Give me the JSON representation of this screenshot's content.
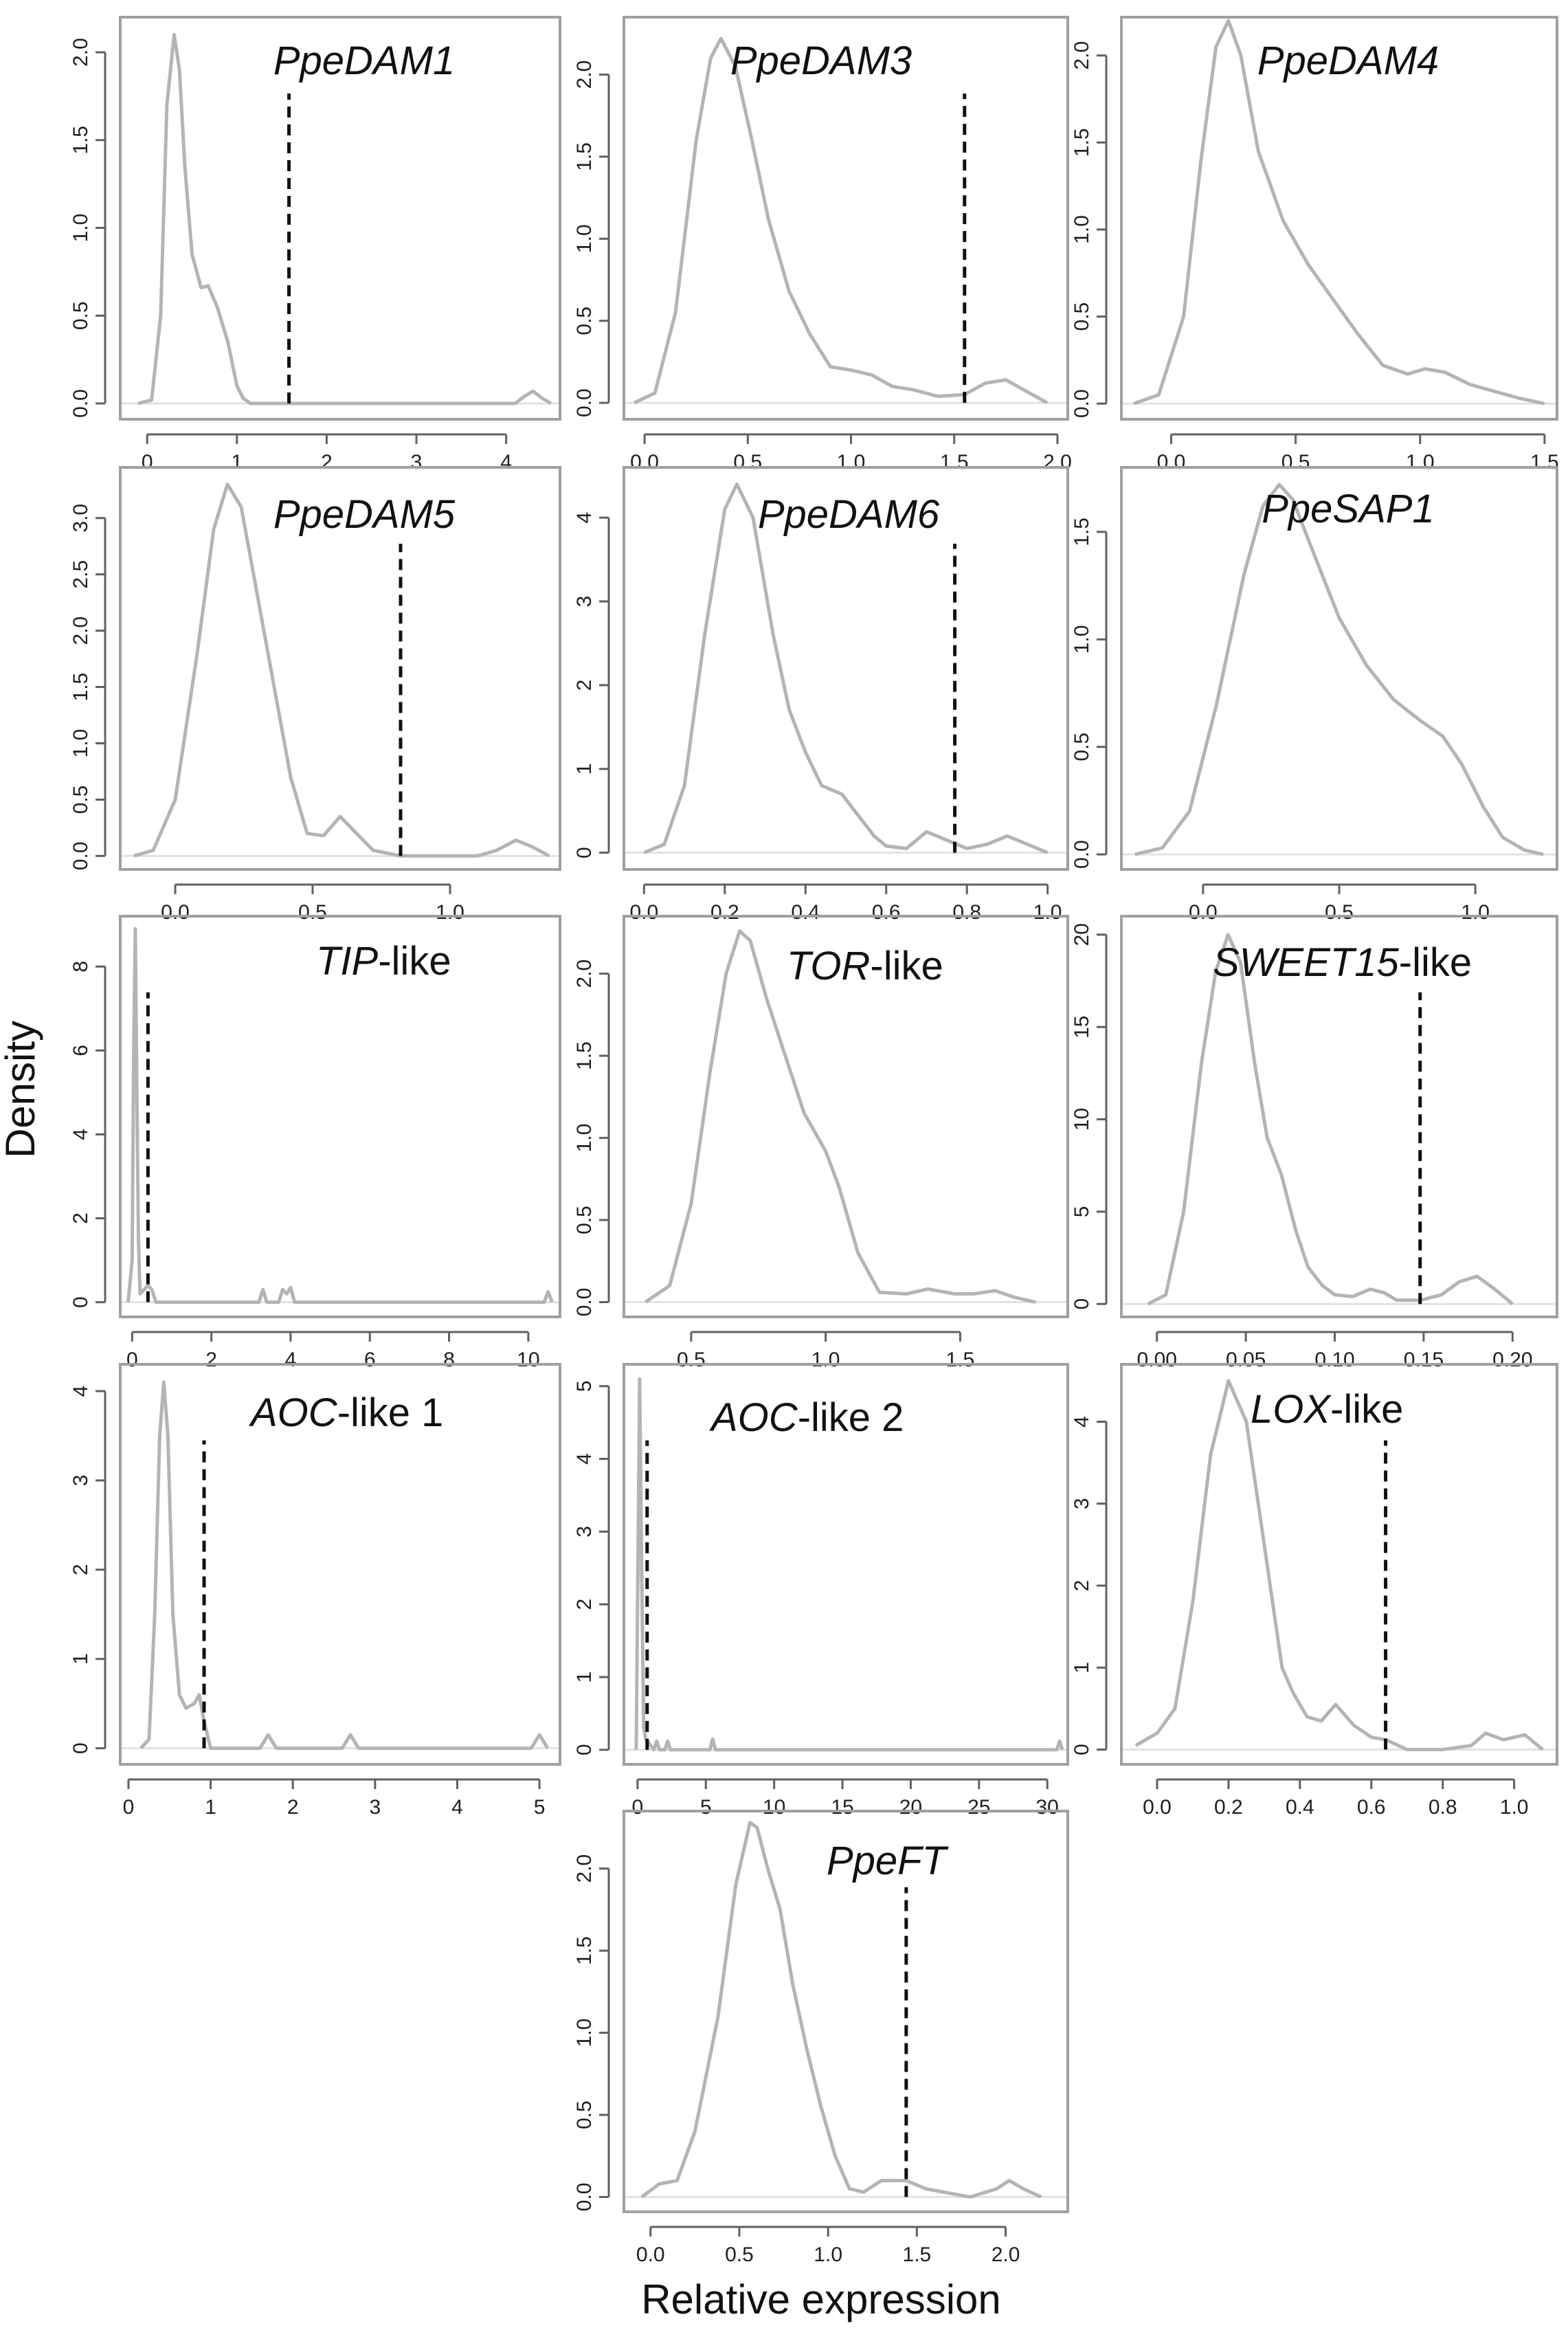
{
  "chart_data": {
    "type": "line",
    "subtype": "density",
    "ylabel": "Density",
    "xlabel": "Relative expression",
    "panels": [
      {
        "name": "PpeDAM1",
        "title_italic": "PpeDAM1",
        "title_suffix": "",
        "threshold": 1.58,
        "xlim": [
          -0.3,
          4.6
        ],
        "ylim": [
          -0.09,
          2.2
        ],
        "xticks": [
          0,
          1,
          2,
          3,
          4
        ],
        "yticks": [
          0,
          0.5,
          1,
          1.5,
          2
        ],
        "yticklabels": [
          "0.0",
          "0.5",
          "1.0",
          "1.5",
          "2.0"
        ],
        "x": [
          -0.1,
          0.05,
          0.15,
          0.22,
          0.3,
          0.36,
          0.42,
          0.5,
          0.6,
          0.68,
          0.78,
          0.9,
          1.0,
          1.07,
          1.15,
          1.3,
          2.0,
          3.0,
          4.1,
          4.2,
          4.3,
          4.4,
          4.5
        ],
        "y": [
          0,
          0.02,
          0.5,
          1.7,
          2.1,
          1.9,
          1.35,
          0.85,
          0.66,
          0.67,
          0.55,
          0.35,
          0.1,
          0.03,
          0,
          0,
          0,
          0,
          0,
          0.04,
          0.07,
          0.03,
          0
        ]
      },
      {
        "name": "PpeDAM3",
        "title_italic": "PpeDAM3",
        "title_suffix": "",
        "threshold": 1.55,
        "xlim": [
          -0.1,
          2.05
        ],
        "ylim": [
          -0.1,
          2.35
        ],
        "xticks": [
          0,
          0.5,
          1,
          1.5,
          2
        ],
        "xticklabels": [
          "0.0",
          "0.5",
          "1.0",
          "1.5",
          "2.0"
        ],
        "yticks": [
          0,
          0.5,
          1,
          1.5,
          2
        ],
        "yticklabels": [
          "0.0",
          "0.5",
          "1.0",
          "1.5",
          "2.0"
        ],
        "x": [
          -0.05,
          0.05,
          0.15,
          0.25,
          0.32,
          0.37,
          0.44,
          0.52,
          0.6,
          0.7,
          0.8,
          0.9,
          1.0,
          1.1,
          1.2,
          1.3,
          1.42,
          1.55,
          1.65,
          1.75,
          1.85,
          1.95
        ],
        "y": [
          0,
          0.06,
          0.55,
          1.6,
          2.1,
          2.22,
          2.05,
          1.6,
          1.12,
          0.68,
          0.42,
          0.22,
          0.2,
          0.17,
          0.1,
          0.08,
          0.04,
          0.05,
          0.12,
          0.14,
          0.07,
          0
        ]
      },
      {
        "name": "PpeDAM4",
        "title_italic": "PpeDAM4",
        "title_suffix": "",
        "threshold": null,
        "xlim": [
          -0.2,
          1.55
        ],
        "ylim": [
          -0.09,
          2.22
        ],
        "xticks": [
          0,
          0.5,
          1,
          1.5
        ],
        "xticklabels": [
          "0.0",
          "0.5",
          "1.0",
          "1.5"
        ],
        "yticks": [
          0,
          0.5,
          1,
          1.5,
          2
        ],
        "yticklabels": [
          "0.0",
          "0.5",
          "1.0",
          "1.5",
          "2.0"
        ],
        "x": [
          -0.15,
          -0.05,
          0.05,
          0.12,
          0.18,
          0.23,
          0.28,
          0.35,
          0.45,
          0.55,
          0.65,
          0.75,
          0.85,
          0.95,
          1.02,
          1.1,
          1.2,
          1.3,
          1.4,
          1.5
        ],
        "y": [
          0,
          0.05,
          0.5,
          1.4,
          2.05,
          2.2,
          2.0,
          1.45,
          1.05,
          0.8,
          0.6,
          0.4,
          0.22,
          0.17,
          0.2,
          0.18,
          0.11,
          0.07,
          0.03,
          0
        ]
      },
      {
        "name": "PpeDAM5",
        "title_italic": "PpeDAM5",
        "title_suffix": "",
        "threshold": 0.82,
        "xlim": [
          -0.2,
          1.4
        ],
        "ylim": [
          -0.12,
          3.45
        ],
        "xticks": [
          0,
          0.5,
          1
        ],
        "xticklabels": [
          "0.0",
          "0.5",
          "1.0"
        ],
        "yticks": [
          0,
          0.5,
          1,
          1.5,
          2,
          2.5,
          3
        ],
        "yticklabels": [
          "0.0",
          "0.5",
          "1.0",
          "1.5",
          "2.0",
          "2.5",
          "3.0"
        ],
        "x": [
          -0.15,
          -0.08,
          0,
          0.08,
          0.14,
          0.19,
          0.24,
          0.3,
          0.36,
          0.42,
          0.48,
          0.54,
          0.6,
          0.66,
          0.72,
          0.82,
          1.0,
          1.1,
          1.17,
          1.24,
          1.3,
          1.36
        ],
        "y": [
          0,
          0.05,
          0.5,
          1.8,
          2.9,
          3.3,
          3.1,
          2.3,
          1.5,
          0.7,
          0.2,
          0.18,
          0.35,
          0.2,
          0.05,
          0,
          0,
          0,
          0.05,
          0.14,
          0.08,
          0
        ]
      },
      {
        "name": "PpeDAM6",
        "title_italic": "PpeDAM6",
        "title_suffix": "",
        "threshold": 0.77,
        "xlim": [
          -0.05,
          1.05
        ],
        "ylim": [
          -0.2,
          4.6
        ],
        "xticks": [
          0,
          0.2,
          0.4,
          0.6,
          0.8,
          1
        ],
        "xticklabels": [
          "0.0",
          "0.2",
          "0.4",
          "0.6",
          "0.8",
          "1.0"
        ],
        "yticks": [
          0,
          1,
          2,
          3,
          4
        ],
        "yticklabels": [
          "0",
          "1",
          "2",
          "3",
          "4"
        ],
        "x": [
          0,
          0.05,
          0.1,
          0.15,
          0.2,
          0.23,
          0.27,
          0.32,
          0.36,
          0.4,
          0.44,
          0.49,
          0.53,
          0.57,
          0.6,
          0.65,
          0.7,
          0.75,
          0.8,
          0.85,
          0.9,
          0.95,
          1.0
        ],
        "y": [
          0,
          0.1,
          0.8,
          2.6,
          4.1,
          4.4,
          4.0,
          2.6,
          1.7,
          1.2,
          0.8,
          0.7,
          0.45,
          0.2,
          0.08,
          0.05,
          0.25,
          0.15,
          0.05,
          0.1,
          0.2,
          0.1,
          0
        ]
      },
      {
        "name": "PpeSAP1",
        "title_italic": "PpeSAP1",
        "title_suffix": "",
        "threshold": null,
        "xlim": [
          -0.3,
          1.3
        ],
        "ylim": [
          -0.07,
          1.8
        ],
        "xticks": [
          0,
          0.5,
          1
        ],
        "xticklabels": [
          "0.0",
          "0.5",
          "1.0"
        ],
        "yticks": [
          0,
          0.5,
          1,
          1.5
        ],
        "yticklabels": [
          "0.0",
          "0.5",
          "1.0",
          "1.5"
        ],
        "x": [
          -0.25,
          -0.15,
          -0.05,
          0.05,
          0.15,
          0.22,
          0.28,
          0.33,
          0.4,
          0.5,
          0.6,
          0.7,
          0.8,
          0.88,
          0.95,
          1.03,
          1.1,
          1.18,
          1.25
        ],
        "y": [
          0,
          0.03,
          0.2,
          0.7,
          1.3,
          1.62,
          1.72,
          1.65,
          1.42,
          1.1,
          0.88,
          0.72,
          0.62,
          0.55,
          0.42,
          0.22,
          0.08,
          0.02,
          0
        ]
      },
      {
        "name": "TIP-like",
        "title_italic": "TIP",
        "title_suffix": "-like",
        "threshold": 0.4,
        "xlim": [
          -0.3,
          10.8
        ],
        "ylim": [
          -0.35,
          9.2
        ],
        "xticks": [
          0,
          2,
          4,
          6,
          8,
          10
        ],
        "xticklabels": [
          "0",
          "2",
          "4",
          "6",
          "8",
          "10"
        ],
        "yticks": [
          0,
          2,
          4,
          6,
          8
        ],
        "yticklabels": [
          "0",
          "2",
          "4",
          "6",
          "8"
        ],
        "x": [
          -0.1,
          0,
          0.04,
          0.08,
          0.12,
          0.16,
          0.2,
          0.3,
          0.4,
          0.5,
          0.6,
          0.8,
          3.2,
          3.3,
          3.4,
          3.7,
          3.8,
          3.9,
          4.0,
          4.1,
          10.4,
          10.5,
          10.6
        ],
        "y": [
          0,
          1,
          6,
          8.9,
          5,
          1.5,
          0.2,
          0.3,
          0.4,
          0.3,
          0,
          0,
          0,
          0.3,
          0,
          0,
          0.3,
          0.2,
          0.35,
          0,
          0,
          0.25,
          0
        ]
      },
      {
        "name": "TOR-like",
        "title_italic": "TOR",
        "title_suffix": "-like",
        "threshold": null,
        "xlim": [
          0.25,
          1.9
        ],
        "ylim": [
          -0.09,
          2.35
        ],
        "xticks": [
          0.5,
          1,
          1.5
        ],
        "xticklabels": [
          "0.5",
          "1.0",
          "1.5"
        ],
        "yticks": [
          0,
          0.5,
          1,
          1.5,
          2
        ],
        "yticklabels": [
          "0.0",
          "0.5",
          "1.0",
          "1.5",
          "2.0"
        ],
        "x": [
          0.33,
          0.42,
          0.5,
          0.57,
          0.63,
          0.68,
          0.72,
          0.78,
          0.85,
          0.92,
          1.0,
          1.05,
          1.12,
          1.2,
          1.3,
          1.38,
          1.48,
          1.55,
          1.63,
          1.7,
          1.78
        ],
        "y": [
          0,
          0.1,
          0.6,
          1.4,
          2.0,
          2.26,
          2.2,
          1.85,
          1.5,
          1.15,
          0.92,
          0.7,
          0.3,
          0.06,
          0.05,
          0.08,
          0.05,
          0.05,
          0.07,
          0.03,
          0
        ]
      },
      {
        "name": "SWEET15-like",
        "title_italic": "SWEET15",
        "title_suffix": "-like",
        "threshold": 0.148,
        "xlim": [
          -0.02,
          0.225
        ],
        "ylim": [
          -0.7,
          21
        ],
        "xticks": [
          0,
          0.05,
          0.1,
          0.15,
          0.2
        ],
        "xticklabels": [
          "0.00",
          "0.05",
          "0.10",
          "0.15",
          "0.20"
        ],
        "yticks": [
          0,
          5,
          10,
          15,
          20
        ],
        "yticklabels": [
          "0",
          "5",
          "10",
          "15",
          "20"
        ],
        "x": [
          -0.005,
          0.005,
          0.015,
          0.025,
          0.033,
          0.04,
          0.047,
          0.055,
          0.062,
          0.07,
          0.078,
          0.085,
          0.093,
          0.1,
          0.11,
          0.12,
          0.128,
          0.135,
          0.148,
          0.16,
          0.17,
          0.18,
          0.19,
          0.2
        ],
        "y": [
          0,
          0.5,
          5,
          13,
          18,
          20,
          18.5,
          13,
          9,
          7,
          4,
          2,
          1,
          0.5,
          0.4,
          0.8,
          0.6,
          0.2,
          0.2,
          0.5,
          1.2,
          1.5,
          0.8,
          0
        ]
      },
      {
        "name": "AOC-like 1",
        "title_italic": "AOC",
        "title_suffix": "-like 1",
        "threshold": 0.92,
        "xlim": [
          -0.1,
          5.25
        ],
        "ylim": [
          -0.18,
          4.3
        ],
        "xticks": [
          0,
          1,
          2,
          3,
          4,
          5
        ],
        "xticklabels": [
          "0",
          "1",
          "2",
          "3",
          "4",
          "5"
        ],
        "yticks": [
          0,
          1,
          2,
          3,
          4
        ],
        "yticklabels": [
          "0",
          "1",
          "2",
          "3",
          "4"
        ],
        "x": [
          0.15,
          0.25,
          0.32,
          0.38,
          0.43,
          0.48,
          0.54,
          0.62,
          0.7,
          0.8,
          0.86,
          0.92,
          1.0,
          1.6,
          1.7,
          1.8,
          2.6,
          2.7,
          2.8,
          4.9,
          5.0,
          5.1
        ],
        "y": [
          0,
          0.1,
          1.5,
          3.5,
          4.1,
          3.5,
          1.5,
          0.6,
          0.45,
          0.5,
          0.6,
          0.3,
          0,
          0,
          0.15,
          0,
          0,
          0.15,
          0,
          0,
          0.15,
          0
        ]
      },
      {
        "name": "AOC-like 2",
        "title_italic": "AOC",
        "title_suffix": "-like 2",
        "threshold": 0.7,
        "xlim": [
          -1.0,
          31.5
        ],
        "ylim": [
          -0.2,
          5.3
        ],
        "xticks": [
          0,
          5,
          10,
          15,
          20,
          25,
          30
        ],
        "xticklabels": [
          "0",
          "5",
          "10",
          "15",
          "20",
          "25",
          "30"
        ],
        "yticks": [
          0,
          1,
          2,
          3,
          4,
          5
        ],
        "yticklabels": [
          "0",
          "1",
          "2",
          "3",
          "4",
          "5"
        ],
        "x": [
          -0.1,
          0.05,
          0.15,
          0.3,
          0.45,
          0.6,
          0.8,
          1.2,
          1.4,
          1.6,
          2.0,
          2.2,
          2.4,
          5.3,
          5.5,
          5.7,
          30.7,
          30.9,
          31.1
        ],
        "y": [
          0,
          3,
          5.1,
          2.5,
          0.3,
          0.15,
          0.1,
          0,
          0.12,
          0,
          0,
          0.12,
          0,
          0,
          0.15,
          0,
          0,
          0.12,
          0
        ]
      },
      {
        "name": "LOX-like",
        "title_italic": "LOX",
        "title_suffix": "-like",
        "threshold": 0.64,
        "xlim": [
          -0.1,
          1.12
        ],
        "ylim": [
          -0.18,
          4.7
        ],
        "xticks": [
          0,
          0.2,
          0.4,
          0.6,
          0.8,
          1
        ],
        "xticklabels": [
          "0.0",
          "0.2",
          "0.4",
          "0.6",
          "0.8",
          "1.0"
        ],
        "yticks": [
          0,
          1,
          2,
          3,
          4
        ],
        "yticklabels": [
          "0",
          "1",
          "2",
          "3",
          "4"
        ],
        "x": [
          -0.06,
          0,
          0.05,
          0.1,
          0.15,
          0.2,
          0.25,
          0.3,
          0.35,
          0.38,
          0.42,
          0.46,
          0.5,
          0.55,
          0.6,
          0.64,
          0.7,
          0.8,
          0.88,
          0.92,
          0.97,
          1.03,
          1.08
        ],
        "y": [
          0.05,
          0.2,
          0.5,
          1.8,
          3.6,
          4.5,
          4.0,
          2.5,
          1.0,
          0.7,
          0.4,
          0.35,
          0.55,
          0.3,
          0.15,
          0.12,
          0,
          0,
          0.05,
          0.2,
          0.12,
          0.18,
          0
        ]
      },
      {
        "name": "PpeFT",
        "title_italic": "PpeFT",
        "title_suffix": "",
        "threshold": 1.44,
        "xlim": [
          -0.15,
          2.35
        ],
        "ylim": [
          -0.09,
          2.35
        ],
        "xticks": [
          0,
          0.5,
          1,
          1.5,
          2
        ],
        "xticklabels": [
          "0.0",
          "0.5",
          "1.0",
          "1.5",
          "2.0"
        ],
        "yticks": [
          0,
          0.5,
          1,
          1.5,
          2
        ],
        "yticklabels": [
          "0.0",
          "0.5",
          "1.0",
          "1.5",
          "2.0"
        ],
        "x": [
          -0.05,
          0.05,
          0.15,
          0.25,
          0.38,
          0.48,
          0.56,
          0.6,
          0.66,
          0.73,
          0.8,
          0.88,
          0.96,
          1.04,
          1.12,
          1.2,
          1.3,
          1.44,
          1.55,
          1.8,
          1.95,
          2.02,
          2.1,
          2.2
        ],
        "y": [
          0,
          0.08,
          0.1,
          0.4,
          1.1,
          1.9,
          2.28,
          2.25,
          2.0,
          1.75,
          1.3,
          0.9,
          0.55,
          0.25,
          0.05,
          0.03,
          0.1,
          0.1,
          0.05,
          0,
          0.05,
          0.1,
          0.05,
          0
        ]
      }
    ]
  }
}
